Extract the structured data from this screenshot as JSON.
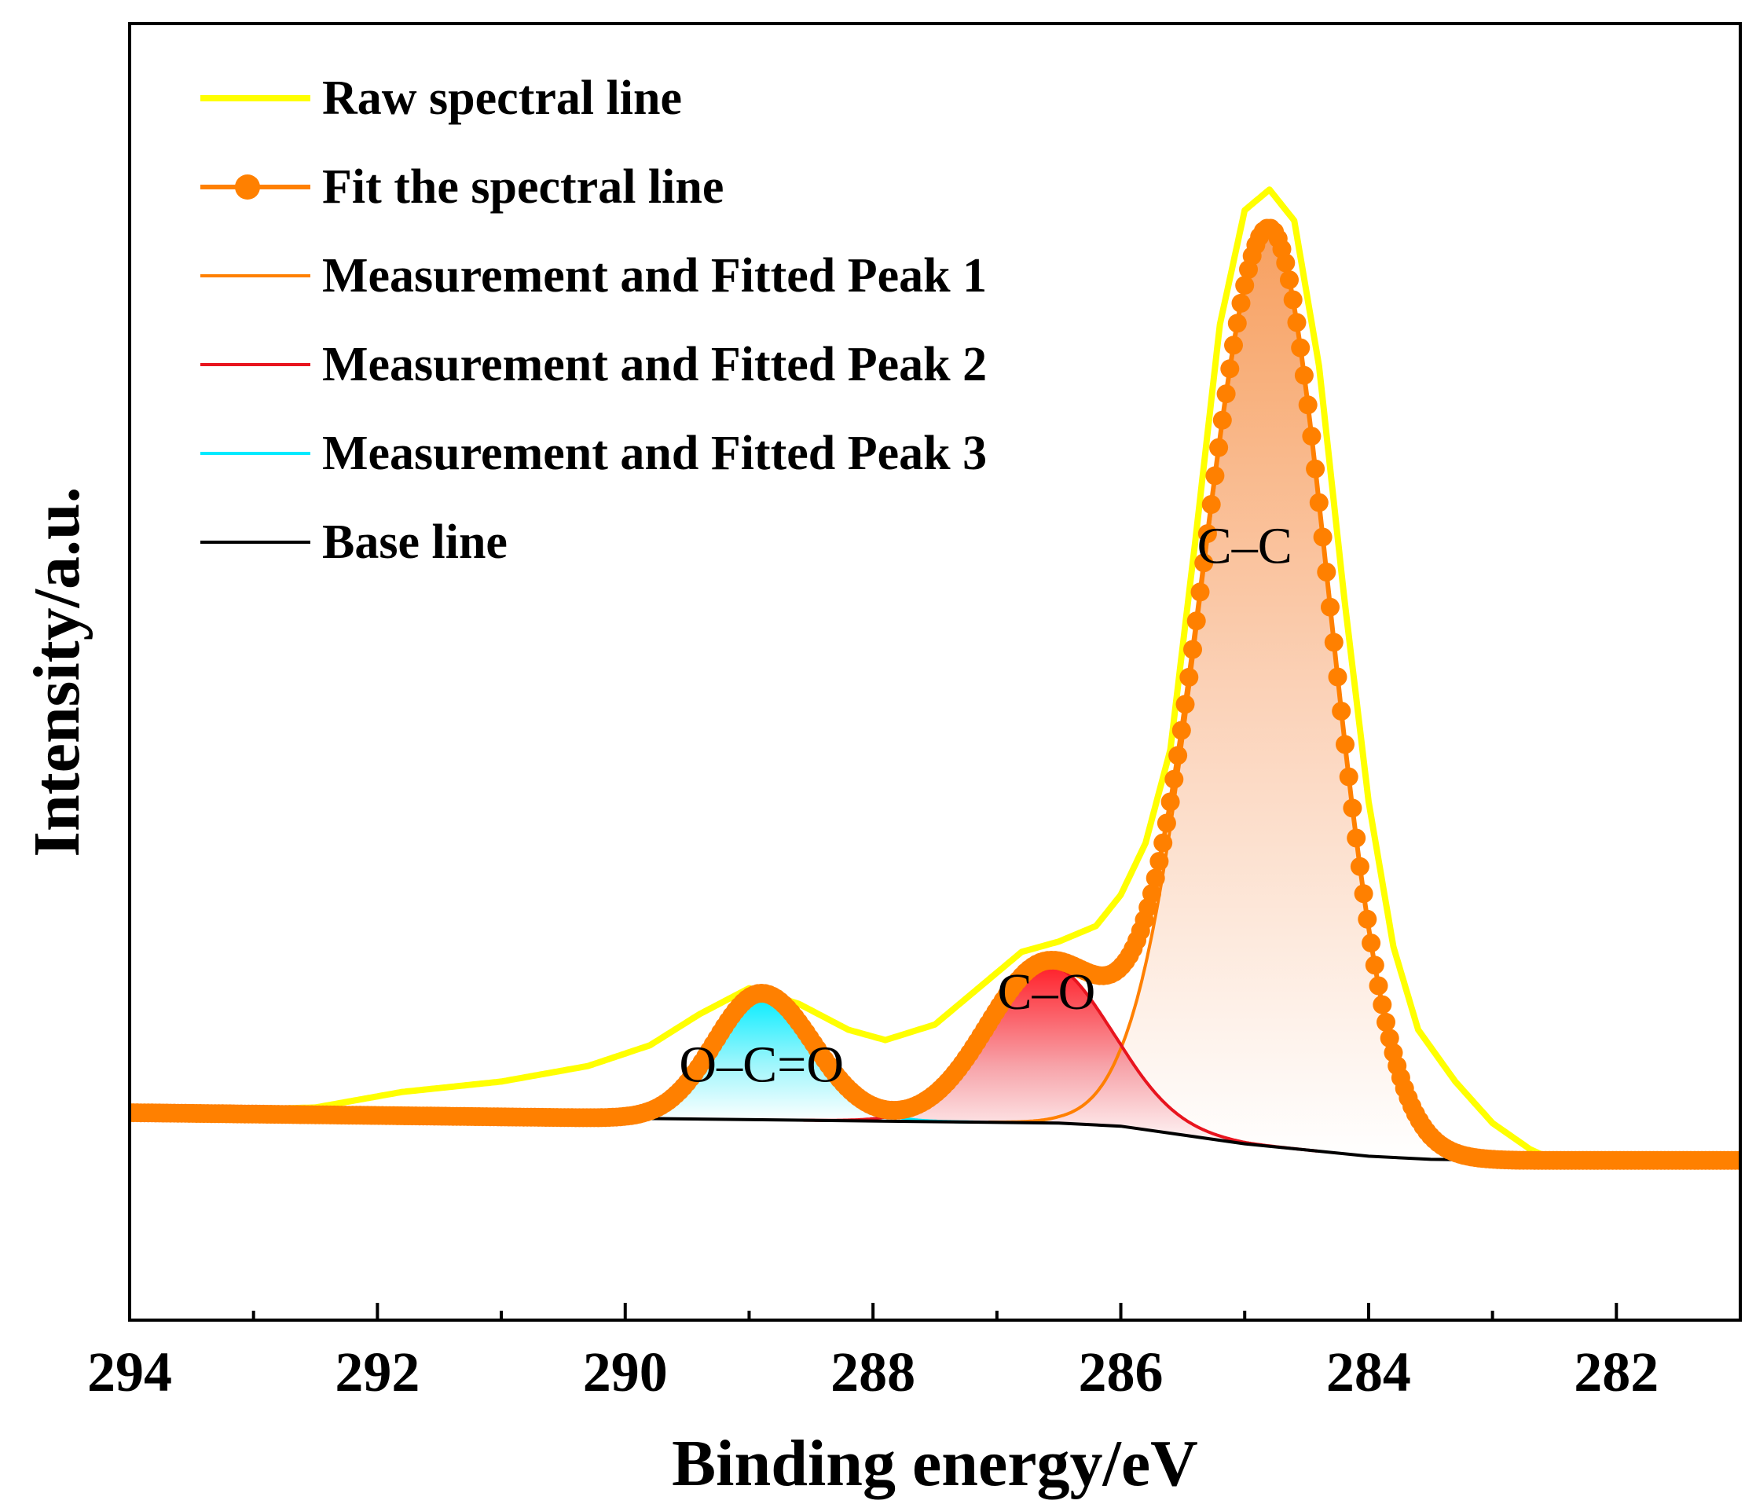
{
  "chart_data": {
    "type": "line",
    "xlabel": "Binding energy/eV",
    "ylabel": "Intensity/a.u.",
    "xlim": [
      294,
      281
    ],
    "ylim": [
      -20,
      105
    ],
    "x_ticks": [
      294,
      292,
      290,
      288,
      286,
      284,
      282
    ],
    "legend_position": "top-left",
    "colors": {
      "raw": "#ffff00",
      "fit": "#ff8000",
      "peak1": "#ff8000",
      "peak2": "#e8141e",
      "peak3": "#00eaff",
      "baseline": "#000000"
    },
    "legend": [
      {
        "key": "raw",
        "label": "Raw spectral line",
        "style": "line"
      },
      {
        "key": "fit",
        "label": "Fit the spectral line",
        "style": "line-marker"
      },
      {
        "key": "peak1",
        "label": "Measurement and Fitted Peak 1",
        "style": "line"
      },
      {
        "key": "peak2",
        "label": "Measurement and Fitted Peak 2",
        "style": "line"
      },
      {
        "key": "peak3",
        "label": "Measurement and Fitted Peak 3",
        "style": "line"
      },
      {
        "key": "baseline",
        "label": "Base line",
        "style": "line"
      }
    ],
    "peak_labels": [
      {
        "text": "C–C",
        "x": 285.0,
        "y": 53
      },
      {
        "text": "C–O",
        "x": 286.6,
        "y": 10
      },
      {
        "text": "O–C=O",
        "x": 288.9,
        "y": 3
      }
    ],
    "baseline": {
      "x": [
        294.0,
        290.3,
        288.0,
        286.5,
        286.0,
        285.0,
        284.0,
        283.5,
        282.8,
        281.0
      ],
      "y": [
        0.0,
        -0.5,
        -0.8,
        -1.0,
        -1.3,
        -3.0,
        -4.2,
        -4.5,
        -4.6,
        -4.6
      ]
    },
    "series": [
      {
        "name": "Measurement and Fitted Peak 1",
        "key": "peak1",
        "center": 284.8,
        "amplitude": 88.5,
        "sigma_left": 0.54,
        "sigma_right": 0.48,
        "fill": "orange"
      },
      {
        "name": "Measurement and Fitted Peak 2",
        "key": "peak2",
        "center": 286.6,
        "amplitude": 15.3,
        "sigma_left": 0.48,
        "sigma_right": 0.52,
        "fill": "red"
      },
      {
        "name": "Measurement and Fitted Peak 3",
        "key": "peak3",
        "center": 288.9,
        "amplitude": 12.2,
        "sigma_left": 0.38,
        "sigma_right": 0.42,
        "fill": "cyan"
      }
    ],
    "raw_spectral_line": {
      "x": [
        294.0,
        292.5,
        291.8,
        291.0,
        290.3,
        289.8,
        289.4,
        289.0,
        288.6,
        288.2,
        287.9,
        287.5,
        287.1,
        286.8,
        286.5,
        286.2,
        286.0,
        285.8,
        285.6,
        285.4,
        285.2,
        285.0,
        284.8,
        284.6,
        284.4,
        284.2,
        284.0,
        283.8,
        283.6,
        283.3,
        283.0,
        282.7,
        282.5,
        281.0
      ],
      "y": [
        0.0,
        0.5,
        2.0,
        3.0,
        4.5,
        6.5,
        9.5,
        12.0,
        10.5,
        8.0,
        7.0,
        8.5,
        12.5,
        15.5,
        16.5,
        18.0,
        21.0,
        26.0,
        35.0,
        55.0,
        76.0,
        87.0,
        89.0,
        86.0,
        72.0,
        50.0,
        30.0,
        16.0,
        8.0,
        3.0,
        -1.0,
        -3.5,
        -4.6,
        -4.6
      ]
    },
    "fit_spectral_line": {
      "note": "sum of fitted peaks plus baseline, drawn with circle markers",
      "marker": "circle"
    }
  }
}
